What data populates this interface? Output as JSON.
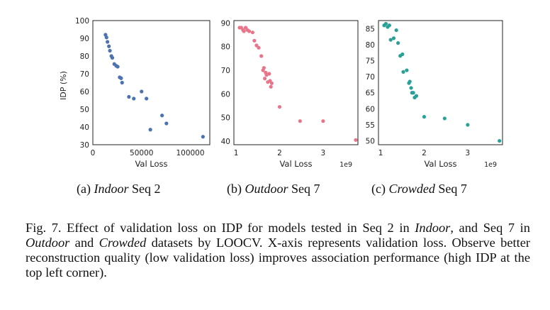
{
  "colors": {
    "indoor": "#4c72b0",
    "outdoor": "#e8758a",
    "crowded": "#2aa198"
  },
  "chart_data": [
    {
      "id": "indoor",
      "type": "scatter",
      "title": "",
      "xlabel": "Val Loss",
      "ylabel": "IDP (%)",
      "xlim": [
        0,
        120000
      ],
      "ylim": [
        30,
        100
      ],
      "x_ticks": [
        0,
        50000,
        100000
      ],
      "x_tick_labels": [
        "0",
        "50000",
        "100000"
      ],
      "y_ticks": [
        30,
        40,
        50,
        60,
        70,
        80,
        90,
        100
      ],
      "y_tick_labels": [
        "30",
        "40",
        "50",
        "60",
        "70",
        "80",
        "90",
        "100"
      ],
      "offset_label": "",
      "points": [
        [
          13000,
          92
        ],
        [
          14000,
          90.5
        ],
        [
          15000,
          88
        ],
        [
          16500,
          85.5
        ],
        [
          17500,
          83
        ],
        [
          19000,
          80
        ],
        [
          20000,
          79
        ],
        [
          22000,
          75.5
        ],
        [
          24000,
          74.5
        ],
        [
          25500,
          74
        ],
        [
          27500,
          68
        ],
        [
          29000,
          67.5
        ],
        [
          30000,
          65
        ],
        [
          37000,
          57
        ],
        [
          42000,
          56
        ],
        [
          50000,
          60
        ],
        [
          55000,
          56
        ],
        [
          59000,
          38.5
        ],
        [
          71000,
          46.5
        ],
        [
          75500,
          42
        ],
        [
          113000,
          34.5
        ]
      ]
    },
    {
      "id": "outdoor",
      "type": "scatter",
      "title": "",
      "xlabel": "Val Loss",
      "ylabel": "",
      "xlim": [
        0.95,
        3.8
      ],
      "ylim": [
        38.5,
        91
      ],
      "x_ticks": [
        1,
        2,
        3
      ],
      "x_tick_labels": [
        "1",
        "2",
        "3"
      ],
      "y_ticks": [
        40,
        50,
        60,
        70,
        80,
        90
      ],
      "y_tick_labels": [
        "40",
        "50",
        "60",
        "70",
        "80",
        "90"
      ],
      "offset_label": "1e9",
      "points": [
        [
          1.08,
          88
        ],
        [
          1.12,
          88
        ],
        [
          1.16,
          87
        ],
        [
          1.18,
          86.5
        ],
        [
          1.22,
          88
        ],
        [
          1.26,
          87
        ],
        [
          1.3,
          86.5
        ],
        [
          1.38,
          86
        ],
        [
          1.42,
          82.5
        ],
        [
          1.47,
          80.5
        ],
        [
          1.52,
          79.5
        ],
        [
          1.58,
          76
        ],
        [
          1.62,
          70
        ],
        [
          1.64,
          71
        ],
        [
          1.66,
          66.5
        ],
        [
          1.68,
          69
        ],
        [
          1.7,
          68
        ],
        [
          1.73,
          65
        ],
        [
          1.76,
          68.5
        ],
        [
          1.78,
          65.5
        ],
        [
          1.8,
          63
        ],
        [
          1.82,
          64.5
        ],
        [
          2.0,
          54.5
        ],
        [
          2.47,
          48.5
        ],
        [
          3.0,
          48.5
        ],
        [
          3.75,
          40.5
        ]
      ]
    },
    {
      "id": "crowded",
      "type": "scatter",
      "title": "",
      "xlabel": "Val Loss",
      "ylabel": "",
      "xlim": [
        0.95,
        3.8
      ],
      "ylim": [
        48.8,
        87.5
      ],
      "x_ticks": [
        1,
        2,
        3
      ],
      "x_tick_labels": [
        "1",
        "2",
        "3"
      ],
      "y_ticks": [
        50,
        55,
        60,
        65,
        70,
        75,
        80,
        85
      ],
      "y_tick_labels": [
        "50",
        "55",
        "60",
        "65",
        "70",
        "75",
        "80",
        "85"
      ],
      "offset_label": "1e9",
      "points": [
        [
          1.08,
          86
        ],
        [
          1.12,
          86.5
        ],
        [
          1.16,
          85.5
        ],
        [
          1.2,
          86
        ],
        [
          1.23,
          81.5
        ],
        [
          1.3,
          82
        ],
        [
          1.36,
          84.5
        ],
        [
          1.4,
          80.5
        ],
        [
          1.45,
          76.5
        ],
        [
          1.5,
          77
        ],
        [
          1.52,
          71.5
        ],
        [
          1.6,
          72
        ],
        [
          1.65,
          68
        ],
        [
          1.67,
          68.5
        ],
        [
          1.7,
          66.5
        ],
        [
          1.72,
          65
        ],
        [
          1.75,
          65
        ],
        [
          1.78,
          63.5
        ],
        [
          1.82,
          64
        ],
        [
          2.0,
          57.5
        ],
        [
          2.47,
          57
        ],
        [
          3.0,
          55
        ],
        [
          3.73,
          50
        ]
      ]
    }
  ],
  "subcaptions": [
    {
      "label": "(a)",
      "dataset": "Indoor",
      "rest": "Seq 2"
    },
    {
      "label": "(b)",
      "dataset": "Outdoor",
      "rest": "Seq 7"
    },
    {
      "label": "(c)",
      "dataset": "Crowded",
      "rest": "Seq 7"
    }
  ],
  "figure_caption": {
    "t1": "Fig. 7.  Effect of validation loss on IDP for models tested in Seq 2 in ",
    "i1": "Indoor",
    "t2": ", and Seq 7 in ",
    "i2": "Outdoor",
    "t3": " and ",
    "i3": "Crowded",
    "t4": " datasets by LOOCV. X-axis represents validation loss. Observe better reconstruction quality (low validation loss) improves association performance (high IDP at the top left corner)."
  }
}
